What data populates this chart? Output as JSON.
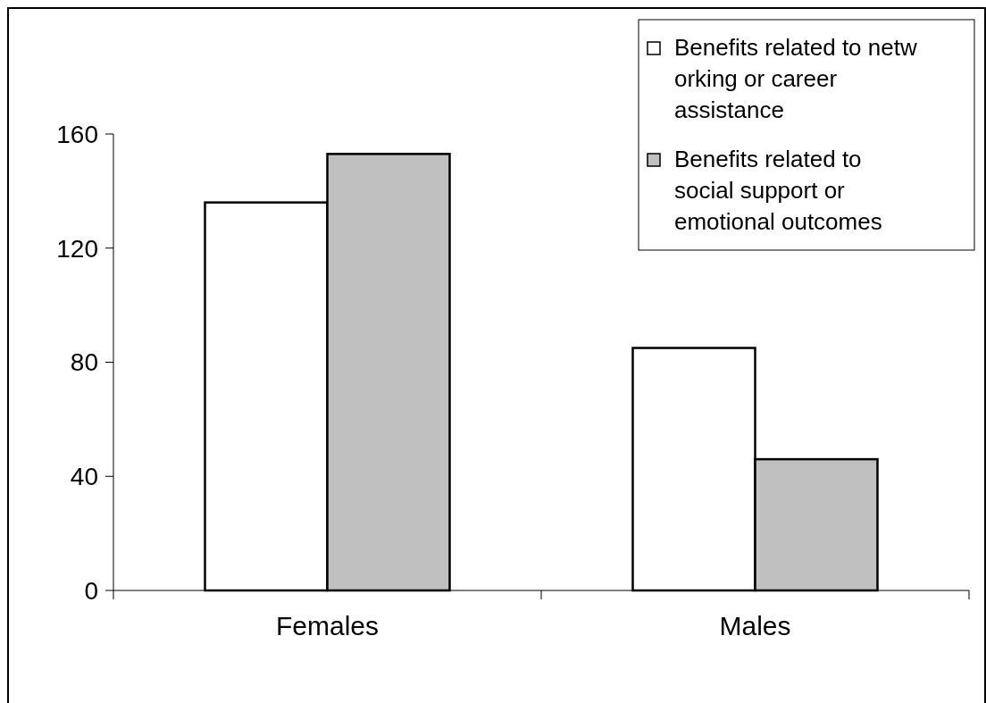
{
  "chart_data": {
    "type": "bar",
    "categories": [
      "Females",
      "Males"
    ],
    "series": [
      {
        "name": "Benefits related to netw orking or career assistance",
        "color": "#ffffff",
        "values": [
          136,
          85
        ]
      },
      {
        "name": "Benefits related to social support or emotional outcomes",
        "color": "#c0c0c0",
        "values": [
          153,
          46
        ]
      }
    ],
    "ylim": [
      0,
      160
    ],
    "yticks": [
      0,
      40,
      80,
      120,
      160
    ],
    "grid": false,
    "legend": "top right"
  }
}
